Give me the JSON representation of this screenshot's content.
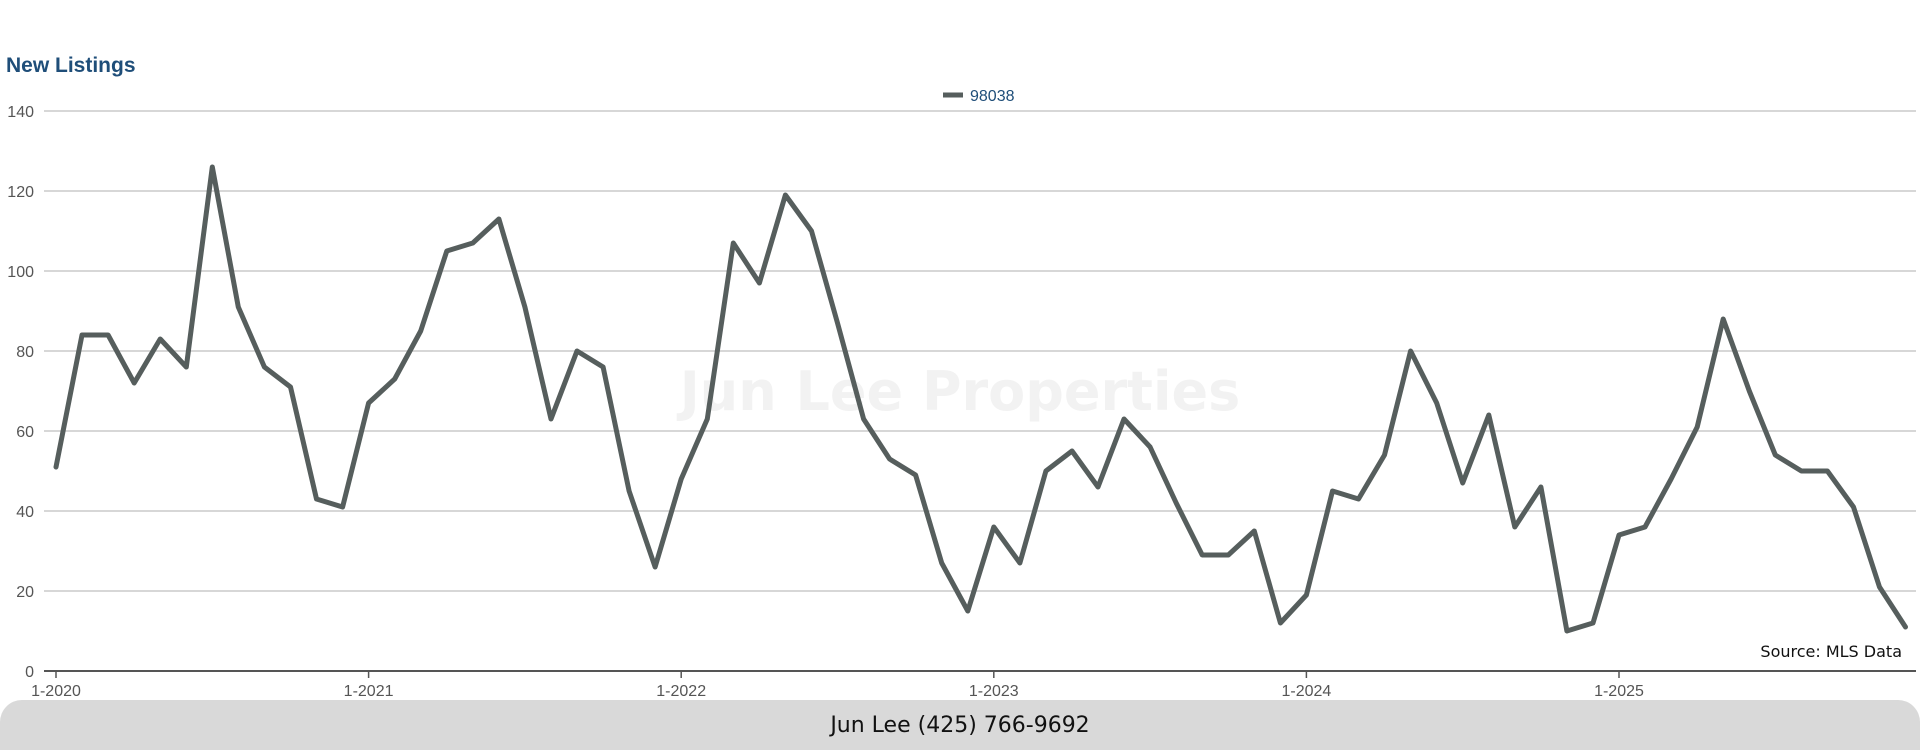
{
  "colors": {
    "series_line": "#565e5d",
    "title": "#1f4e79",
    "grid": "#bfbfbf",
    "axis": "#555555",
    "footer_bg": "#d9d9d9",
    "watermark": "#f2f2f2"
  },
  "watermark": "Jun Lee Properties",
  "source_note": "Source: MLS Data",
  "footer": {
    "contact": "Jun Lee (425) 766-9692"
  },
  "chart_data": {
    "type": "line",
    "title": "New Listings",
    "xlabel": "",
    "ylabel": "",
    "ylim": [
      0,
      140
    ],
    "yticks": [
      0,
      20,
      40,
      60,
      80,
      100,
      120,
      140
    ],
    "grid": true,
    "legend_position": "top-center",
    "x_tick_labels": [
      "1-2020",
      "1-2021",
      "1-2022",
      "1-2023",
      "1-2024",
      "1-2025"
    ],
    "x_start": "2020-01",
    "x_end": "2025-12",
    "series": [
      {
        "name": "98038",
        "color": "#565e5d",
        "values": [
          51,
          84,
          84,
          72,
          83,
          76,
          126,
          91,
          76,
          71,
          43,
          41,
          67,
          73,
          85,
          105,
          107,
          113,
          91,
          63,
          80,
          76,
          45,
          26,
          48,
          63,
          107,
          97,
          119,
          110,
          87,
          63,
          53,
          49,
          27,
          15,
          36,
          27,
          50,
          55,
          46,
          63,
          56,
          42,
          29,
          29,
          35,
          12,
          19,
          45,
          43,
          54,
          80,
          67,
          47,
          64,
          36,
          46,
          10,
          12,
          34,
          36,
          48,
          61,
          88,
          70,
          54,
          50,
          50,
          41,
          21,
          11
        ]
      }
    ]
  }
}
